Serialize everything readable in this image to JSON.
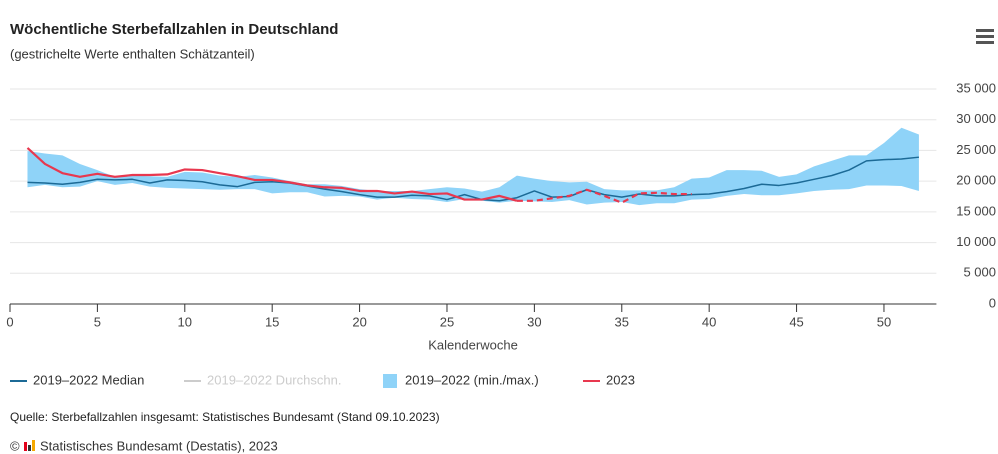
{
  "chart_data": {
    "type": "line",
    "title": "Wöchentliche Sterbefallzahlen in Deutschland",
    "subtitle": "(gestrichelte Werte enthalten Schätzanteil)",
    "x_label": "Kalenderwoche",
    "x": [
      1,
      2,
      3,
      4,
      5,
      6,
      7,
      8,
      9,
      10,
      11,
      12,
      13,
      14,
      15,
      16,
      17,
      18,
      19,
      20,
      21,
      22,
      23,
      24,
      25,
      26,
      27,
      28,
      29,
      30,
      31,
      32,
      33,
      34,
      35,
      36,
      37,
      38,
      39,
      40,
      41,
      42,
      43,
      44,
      45,
      46,
      47,
      48,
      49,
      50,
      51,
      52
    ],
    "xlim": [
      0,
      53
    ],
    "xticks": [
      0,
      5,
      10,
      15,
      20,
      25,
      30,
      35,
      40,
      45,
      50
    ],
    "ylim": [
      0,
      35000
    ],
    "yticks": [
      0,
      {
        "value": 5000,
        "label": "5 000"
      },
      {
        "value": 10000,
        "label": "10 000"
      },
      {
        "value": 15000,
        "label": "15 000"
      },
      {
        "value": 20000,
        "label": "20 000"
      },
      {
        "value": 25000,
        "label": "25 000"
      },
      {
        "value": 30000,
        "label": "30 000"
      },
      {
        "value": 35000,
        "label": "35 000"
      }
    ],
    "grid": true,
    "series": [
      {
        "name": "2019–2022 Median",
        "type": "line",
        "color": "#1c6a96",
        "values": [
          19800,
          19700,
          19500,
          19800,
          20300,
          20200,
          20300,
          19700,
          20200,
          20100,
          19900,
          19400,
          19100,
          19800,
          19900,
          19700,
          19200,
          18700,
          18300,
          17800,
          17400,
          17400,
          17700,
          17600,
          17000,
          17800,
          17000,
          16800,
          17300,
          18400,
          17400,
          17500,
          18600,
          17800,
          17400,
          17900,
          17600,
          17600,
          17800,
          17900,
          18300,
          18800,
          19500,
          19300,
          19700,
          20300,
          20900,
          21800,
          23300,
          23500,
          23600,
          23900
        ]
      },
      {
        "name": "2019–2022 Durchschn.",
        "type": "line",
        "color": "#cccccc",
        "visible": false
      },
      {
        "name": "2019–2022 (min./max.)",
        "type": "arearange",
        "color": "#8fd3f8",
        "low": [
          19000,
          19400,
          19000,
          19100,
          20000,
          19400,
          19700,
          19100,
          18900,
          18800,
          18700,
          18600,
          18700,
          18700,
          18000,
          18200,
          18200,
          17500,
          17600,
          17500,
          17000,
          17300,
          17100,
          17000,
          16600,
          17100,
          16800,
          16500,
          16800,
          16700,
          16600,
          16900,
          16200,
          16500,
          16600,
          16100,
          16400,
          16400,
          17000,
          17100,
          17600,
          17900,
          17700,
          17700,
          18000,
          18400,
          18600,
          18700,
          19300,
          19300,
          19200,
          18400
        ],
        "high": [
          24900,
          24500,
          24200,
          22800,
          21800,
          20700,
          20900,
          20800,
          20700,
          21500,
          21400,
          20900,
          20700,
          21000,
          20600,
          20000,
          19500,
          19500,
          19200,
          18700,
          18400,
          18400,
          18400,
          18700,
          19000,
          18800,
          18300,
          19000,
          20900,
          20400,
          20000,
          19800,
          19900,
          18700,
          18500,
          18500,
          18500,
          19000,
          20400,
          20600,
          21800,
          21800,
          21700,
          20700,
          21100,
          22400,
          23300,
          24200,
          24200,
          26200,
          28700,
          27600
        ]
      },
      {
        "name": "2023",
        "type": "line",
        "color": "#e8384f",
        "dash_from_x": 29,
        "values": [
          25400,
          22800,
          21300,
          20700,
          21200,
          20700,
          21000,
          21000,
          21100,
          21900,
          21800,
          21300,
          20800,
          20200,
          20200,
          19800,
          19300,
          19000,
          18900,
          18400,
          18400,
          18000,
          18300,
          17900,
          18000,
          17000,
          17000,
          17600,
          16800,
          16800,
          17200,
          17600,
          18600,
          17600,
          16500,
          18000,
          18100,
          17900,
          17900,
          null,
          null,
          null,
          null,
          null,
          null,
          null,
          null,
          null,
          null,
          null,
          null,
          null
        ]
      }
    ],
    "source": "Quelle: Sterbefallzahlen insgesamt: Statistisches Bundesamt (Stand 09.10.2023)",
    "copyright_symbol": "©",
    "copyright": "Statistisches Bundesamt (Destatis), 2023"
  }
}
